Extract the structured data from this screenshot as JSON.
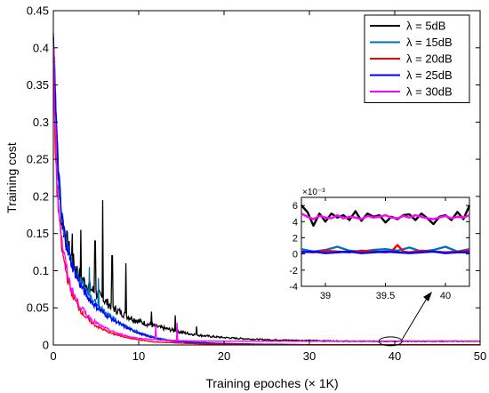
{
  "chart_data": [
    {
      "type": "line",
      "xlabel": "Training epoches (× 1K)",
      "ylabel": "Training cost",
      "xlim": [
        0,
        50
      ],
      "ylim": [
        0,
        0.45
      ],
      "x_ticks": [
        "0",
        "10",
        "20",
        "30",
        "40",
        "50"
      ],
      "y_ticks": [
        "0",
        "0.05",
        "0.1",
        "0.15",
        "0.2",
        "0.25",
        "0.3",
        "0.35",
        "0.4",
        "0.45"
      ],
      "grid": false,
      "legend_position": "top-right",
      "series": [
        {
          "name": "λ = 5dB",
          "color": "#000000",
          "x": [
            0,
            0.5,
            1,
            2,
            3,
            4,
            5,
            5.5,
            6,
            7,
            8,
            9,
            10,
            12,
            14,
            16,
            18,
            20,
            25,
            30,
            35,
            40,
            45,
            50
          ],
          "values": [
            0.42,
            0.25,
            0.17,
            0.12,
            0.095,
            0.08,
            0.07,
            0.065,
            0.06,
            0.05,
            0.043,
            0.037,
            0.032,
            0.025,
            0.02,
            0.015,
            0.012,
            0.01,
            0.007,
            0.006,
            0.005,
            0.005,
            0.005,
            0.005
          ],
          "spikes": [
            [
              5.8,
              0.195
            ],
            [
              3.2,
              0.155
            ],
            [
              4.9,
              0.14
            ],
            [
              6.9,
              0.12
            ],
            [
              8.5,
              0.11
            ],
            [
              2.2,
              0.15
            ],
            [
              11.5,
              0.045
            ],
            [
              14.3,
              0.04
            ],
            [
              16.8,
              0.025
            ]
          ]
        },
        {
          "name": "λ = 15dB",
          "color": "#0072BD",
          "x": [
            0,
            0.5,
            1,
            2,
            3,
            4,
            5,
            6,
            7,
            8,
            9,
            10,
            11,
            12,
            14,
            16,
            18,
            20,
            25,
            30,
            40,
            50
          ],
          "values": [
            0.42,
            0.25,
            0.17,
            0.12,
            0.09,
            0.07,
            0.056,
            0.045,
            0.036,
            0.028,
            0.022,
            0.017,
            0.013,
            0.01,
            0.006,
            0.004,
            0.003,
            0.002,
            0.001,
            0.0005,
            0.0005,
            0.0005
          ],
          "spikes": [
            [
              4.2,
              0.105
            ],
            [
              5.3,
              0.09
            ]
          ]
        },
        {
          "name": "λ = 20dB",
          "color": "#FF0000",
          "x": [
            0,
            0.5,
            1,
            2,
            3,
            4,
            5,
            6,
            7,
            8,
            9,
            10,
            12,
            14,
            16,
            20,
            25,
            30,
            40,
            50
          ],
          "values": [
            0.34,
            0.2,
            0.13,
            0.075,
            0.05,
            0.035,
            0.026,
            0.02,
            0.015,
            0.012,
            0.009,
            0.007,
            0.004,
            0.003,
            0.002,
            0.001,
            0.0005,
            0.0005,
            0.0005,
            0.0005
          ],
          "spikes": []
        },
        {
          "name": "λ = 25dB",
          "color": "#0000FF",
          "x": [
            0,
            0.5,
            1,
            2,
            3,
            4,
            5,
            6,
            7,
            8,
            9,
            10,
            11,
            12,
            14,
            16,
            18,
            20,
            25,
            30,
            40,
            50
          ],
          "values": [
            0.42,
            0.25,
            0.17,
            0.115,
            0.085,
            0.065,
            0.052,
            0.042,
            0.034,
            0.027,
            0.021,
            0.016,
            0.012,
            0.009,
            0.005,
            0.0035,
            0.0025,
            0.002,
            0.001,
            0.0005,
            0.0005,
            0.0005
          ],
          "spikes": []
        },
        {
          "name": "λ = 30dB",
          "color": "#FF00FF",
          "x": [
            0,
            0.5,
            1,
            2,
            3,
            4,
            5,
            6,
            7,
            8,
            9,
            10,
            12,
            14,
            16,
            20,
            25,
            30,
            40,
            50
          ],
          "values": [
            0.41,
            0.21,
            0.14,
            0.08,
            0.055,
            0.04,
            0.03,
            0.023,
            0.018,
            0.014,
            0.011,
            0.009,
            0.007,
            0.006,
            0.0055,
            0.005,
            0.005,
            0.005,
            0.005,
            0.005
          ],
          "spikes": [
            [
              12.0,
              0.028
            ],
            [
              14.5,
              0.03
            ]
          ]
        }
      ]
    },
    {
      "type": "line",
      "exponent_label": "×10⁻³",
      "xlim": [
        38.8,
        40.2
      ],
      "ylim": [
        -4,
        7
      ],
      "x_ticks": [
        "39",
        "39.5",
        "40"
      ],
      "y_ticks": [
        "-4",
        "-2",
        "0",
        "2",
        "4",
        "6"
      ],
      "series": [
        {
          "name": "λ = 5dB",
          "color": "#000000",
          "x": [
            38.8,
            38.85,
            38.9,
            38.95,
            39.0,
            39.05,
            39.1,
            39.15,
            39.2,
            39.25,
            39.3,
            39.35,
            39.4,
            39.45,
            39.5,
            39.55,
            39.6,
            39.65,
            39.7,
            39.75,
            39.8,
            39.85,
            39.9,
            39.95,
            40.0,
            40.05,
            40.1,
            40.15,
            40.2
          ],
          "values": [
            6,
            5.2,
            3.5,
            5,
            4,
            5,
            4.5,
            4.8,
            4.2,
            5.3,
            4.1,
            5,
            4.6,
            4.8,
            3.9,
            4.6,
            4.3,
            4.8,
            4.9,
            4.2,
            5,
            4.4,
            3.7,
            4.6,
            4.8,
            4.2,
            5.2,
            4.3,
            6
          ]
        },
        {
          "name": "λ = 15dB",
          "color": "#0072BD",
          "x": [
            38.8,
            38.9,
            39.0,
            39.1,
            39.2,
            39.3,
            39.4,
            39.5,
            39.6,
            39.7,
            39.8,
            39.9,
            40.0,
            40.1,
            40.2
          ],
          "values": [
            0.6,
            0.3,
            0.5,
            0.9,
            0.4,
            0.3,
            0.5,
            0.6,
            0.4,
            0.8,
            0.3,
            0.5,
            0.9,
            0.3,
            0.6
          ]
        },
        {
          "name": "λ = 20dB",
          "color": "#FF0000",
          "x": [
            38.8,
            38.9,
            39.0,
            39.1,
            39.2,
            39.3,
            39.4,
            39.5,
            39.55,
            39.6,
            39.65,
            39.7,
            39.8,
            39.9,
            40.0,
            40.1,
            40.2
          ],
          "values": [
            0.3,
            0.2,
            0.4,
            0.3,
            0.2,
            0.4,
            0.3,
            0.2,
            0.3,
            1.1,
            0.3,
            0.2,
            0.4,
            0.3,
            0.2,
            0.3,
            0.4
          ]
        },
        {
          "name": "λ = 25dB",
          "color": "#0000FF",
          "x": [
            38.8,
            38.9,
            39.0,
            39.1,
            39.2,
            39.3,
            39.4,
            39.5,
            39.6,
            39.7,
            39.8,
            39.9,
            40.0,
            40.1,
            40.2
          ],
          "values": [
            0.2,
            0.3,
            0.1,
            0.2,
            0.3,
            0.1,
            0.2,
            0.3,
            0.2,
            0.1,
            0.2,
            0.3,
            0.1,
            0.2,
            0.2
          ]
        },
        {
          "name": "λ = 30dB",
          "color": "#FF00FF",
          "x": [
            38.8,
            38.85,
            38.9,
            38.95,
            39.0,
            39.05,
            39.1,
            39.15,
            39.2,
            39.25,
            39.3,
            39.35,
            39.4,
            39.45,
            39.5,
            39.55,
            39.6,
            39.65,
            39.7,
            39.75,
            39.8,
            39.85,
            39.9,
            39.95,
            40.0,
            40.05,
            40.1,
            40.15,
            40.2
          ],
          "values": [
            5,
            4.6,
            4.3,
            4.7,
            4.5,
            4.4,
            4.8,
            4.4,
            4.6,
            4.5,
            4.3,
            4.7,
            4.5,
            4.6,
            4.8,
            4.5,
            4.4,
            4.7,
            4.5,
            4.8,
            4.6,
            4.4,
            4.3,
            4.5,
            4.7,
            4.4,
            4.6,
            4.5,
            4.8
          ]
        }
      ]
    }
  ]
}
